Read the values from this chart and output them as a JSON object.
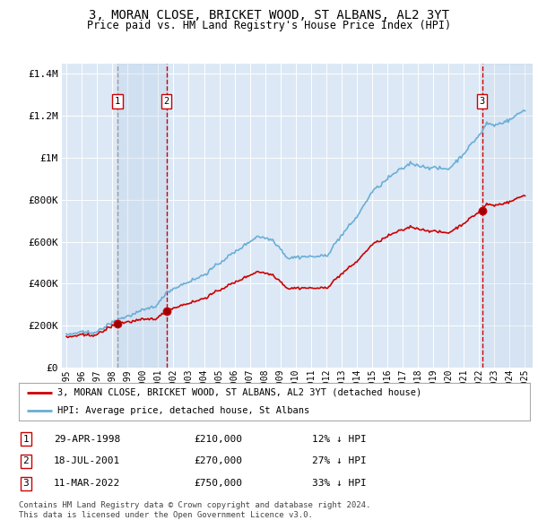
{
  "title": "3, MORAN CLOSE, BRICKET WOOD, ST ALBANS, AL2 3YT",
  "subtitle": "Price paid vs. HM Land Registry's House Price Index (HPI)",
  "background_color": "#ffffff",
  "plot_bg_color": "#dce8f5",
  "grid_color": "#ffffff",
  "sale_dates_dec": [
    1998.33,
    2001.54,
    2022.19
  ],
  "sale_prices": [
    210000,
    270000,
    750000
  ],
  "sale_labels": [
    "1",
    "2",
    "3"
  ],
  "hpi_line_color": "#6aaed6",
  "price_line_color": "#cc0000",
  "vline_color_gray": "#888888",
  "vline_color_red": "#cc0000",
  "legend_entries": [
    "3, MORAN CLOSE, BRICKET WOOD, ST ALBANS, AL2 3YT (detached house)",
    "HPI: Average price, detached house, St Albans"
  ],
  "table_rows": [
    {
      "num": "1",
      "date": "29-APR-1998",
      "price": "£210,000",
      "hpi": "12% ↓ HPI"
    },
    {
      "num": "2",
      "date": "18-JUL-2001",
      "price": "£270,000",
      "hpi": "27% ↓ HPI"
    },
    {
      "num": "3",
      "date": "11-MAR-2022",
      "price": "£750,000",
      "hpi": "33% ↓ HPI"
    }
  ],
  "footnote": "Contains HM Land Registry data © Crown copyright and database right 2024.\nThis data is licensed under the Open Government Licence v3.0.",
  "ylim": [
    0,
    1450000
  ],
  "yticks": [
    0,
    200000,
    400000,
    600000,
    800000,
    1000000,
    1200000,
    1400000
  ],
  "ytick_labels": [
    "£0",
    "£200K",
    "£400K",
    "£600K",
    "£800K",
    "£1M",
    "£1.2M",
    "£1.4M"
  ],
  "xmin": 1994.7,
  "xmax": 2025.5,
  "shading_alpha1": 0.18,
  "shading_alpha2": 0.3,
  "shading_color": "#b8d0e8"
}
